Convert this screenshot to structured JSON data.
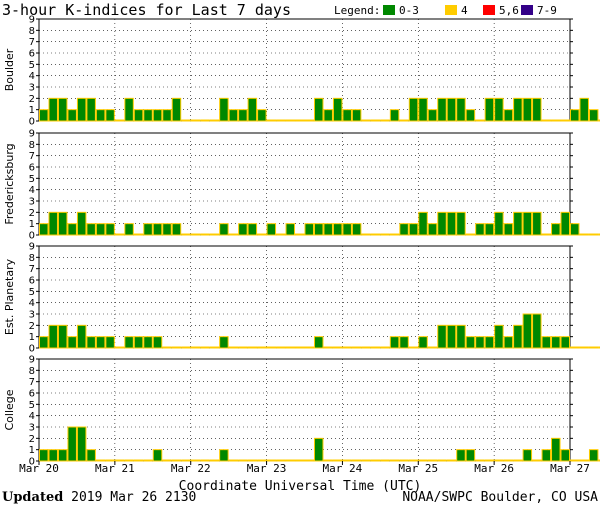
{
  "chart_data": {
    "type": "bar",
    "title": "3-hour K-indices for Last 7 days",
    "xlabel": "Coordinate Universal Time (UTC)",
    "ylim": [
      0,
      9
    ],
    "y_ticks": [
      "0",
      "1",
      "2",
      "3",
      "4",
      "5",
      "6",
      "7",
      "8",
      "9"
    ],
    "x_ticks": [
      "Mar 20",
      "Mar 21",
      "Mar 22",
      "Mar 23",
      "Mar 24",
      "Mar 25",
      "Mar 26",
      "Mar 27"
    ],
    "slots_per_day": 8,
    "grid": true,
    "legend": {
      "label": "Legend:",
      "placement": "top-right",
      "items": [
        {
          "label": "0-3",
          "color": "#008800"
        },
        {
          "label": "4",
          "color": "#ffcc00"
        },
        {
          "label": "5,6",
          "color": "#ff0000"
        },
        {
          "label": "7-9",
          "color": "#330088"
        }
      ]
    },
    "bar_outline_color": "#ffcc00",
    "series": [
      {
        "name": "Boulder",
        "values": [
          1,
          2,
          2,
          1,
          2,
          2,
          1,
          1,
          0,
          2,
          1,
          1,
          1,
          1,
          2,
          0,
          0,
          0,
          0,
          2,
          1,
          1,
          2,
          1,
          0,
          0,
          0,
          0,
          0,
          2,
          1,
          2,
          1,
          1,
          0,
          0,
          0,
          1,
          0,
          2,
          2,
          1,
          2,
          2,
          2,
          1,
          0,
          2,
          2,
          1,
          2,
          2,
          2,
          0,
          0,
          0,
          1,
          2,
          1,
          0
        ]
      },
      {
        "name": "Fredericksburg",
        "values": [
          1,
          2,
          2,
          1,
          2,
          1,
          1,
          1,
          0,
          1,
          0,
          1,
          1,
          1,
          1,
          0,
          0,
          0,
          0,
          1,
          0,
          1,
          1,
          0,
          1,
          0,
          1,
          0,
          1,
          1,
          1,
          1,
          1,
          1,
          0,
          0,
          0,
          0,
          1,
          1,
          2,
          1,
          2,
          2,
          2,
          0,
          1,
          1,
          2,
          1,
          2,
          2,
          2,
          0,
          1,
          2,
          1,
          0,
          0,
          0
        ]
      },
      {
        "name": "Est. Planetary",
        "values": [
          1,
          2,
          2,
          1,
          2,
          1,
          1,
          1,
          0,
          1,
          1,
          1,
          1,
          0,
          0,
          0,
          0,
          0,
          0,
          1,
          0,
          0,
          0,
          0,
          0,
          0,
          0,
          0,
          0,
          1,
          0,
          0,
          0,
          0,
          0,
          0,
          0,
          1,
          1,
          0,
          1,
          0,
          2,
          2,
          2,
          1,
          1,
          1,
          2,
          1,
          2,
          3,
          3,
          1,
          1,
          1,
          0,
          0,
          0,
          0
        ]
      },
      {
        "name": "College",
        "values": [
          1,
          1,
          1,
          3,
          3,
          1,
          0,
          0,
          0,
          0,
          0,
          0,
          1,
          0,
          0,
          0,
          0,
          0,
          0,
          1,
          0,
          0,
          0,
          0,
          0,
          0,
          0,
          0,
          0,
          2,
          0,
          0,
          0,
          0,
          0,
          0,
          0,
          0,
          0,
          0,
          0,
          0,
          0,
          0,
          1,
          1,
          0,
          0,
          0,
          0,
          0,
          1,
          0,
          1,
          2,
          1,
          0,
          0,
          1,
          0
        ]
      }
    ]
  },
  "footer": {
    "updated_label": "Updated",
    "updated_value": "2019 Mar 26 2130",
    "source": "NOAA/SWPC Boulder, CO USA"
  }
}
